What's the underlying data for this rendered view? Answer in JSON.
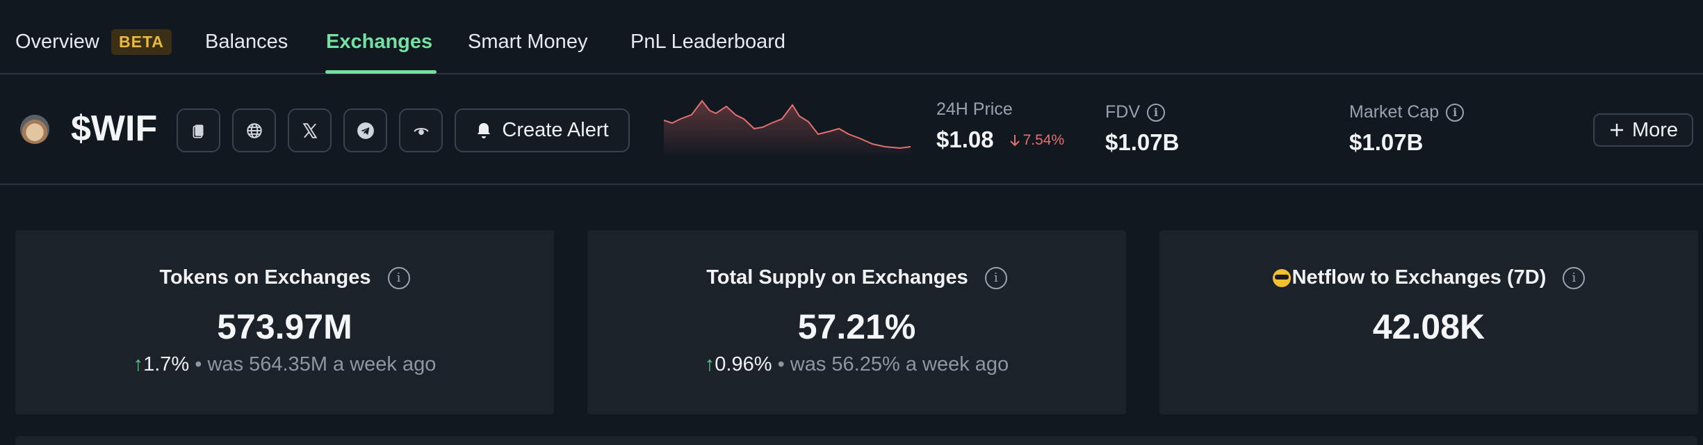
{
  "nav": {
    "tabs": [
      {
        "label": "Overview",
        "badge": "BETA"
      },
      {
        "label": "Balances"
      },
      {
        "label": "Exchanges",
        "active": true
      },
      {
        "label": "Smart Money"
      },
      {
        "label": "PnL Leaderboard"
      }
    ]
  },
  "token": {
    "symbol": "$WIF",
    "icons": [
      "copy-icon",
      "globe-icon",
      "x-icon",
      "telegram-icon",
      "watch-icon"
    ],
    "alert_label": "Create Alert",
    "price_label": "24H Price",
    "price": "$1.08",
    "price_change": "7.54%",
    "fdv_label": "FDV",
    "fdv": "$1.07B",
    "mcap_label": "Market Cap",
    "mcap": "$1.07B",
    "more_label": "More"
  },
  "cards": [
    {
      "title": "Tokens on Exchanges",
      "value": "573.97M",
      "change": "1.7%",
      "was": "• was 564.35M a week ago"
    },
    {
      "title": "Total Supply on Exchanges",
      "value": "57.21%",
      "change": "0.96%",
      "was": "• was 56.25% a week ago"
    },
    {
      "title": "Netflow to Exchanges (7D)",
      "value": "42.08K"
    }
  ],
  "colors": {
    "accent": "#74e0a1",
    "down": "#e46f6f",
    "up": "#5fce86",
    "badge": "#e9b93c"
  }
}
